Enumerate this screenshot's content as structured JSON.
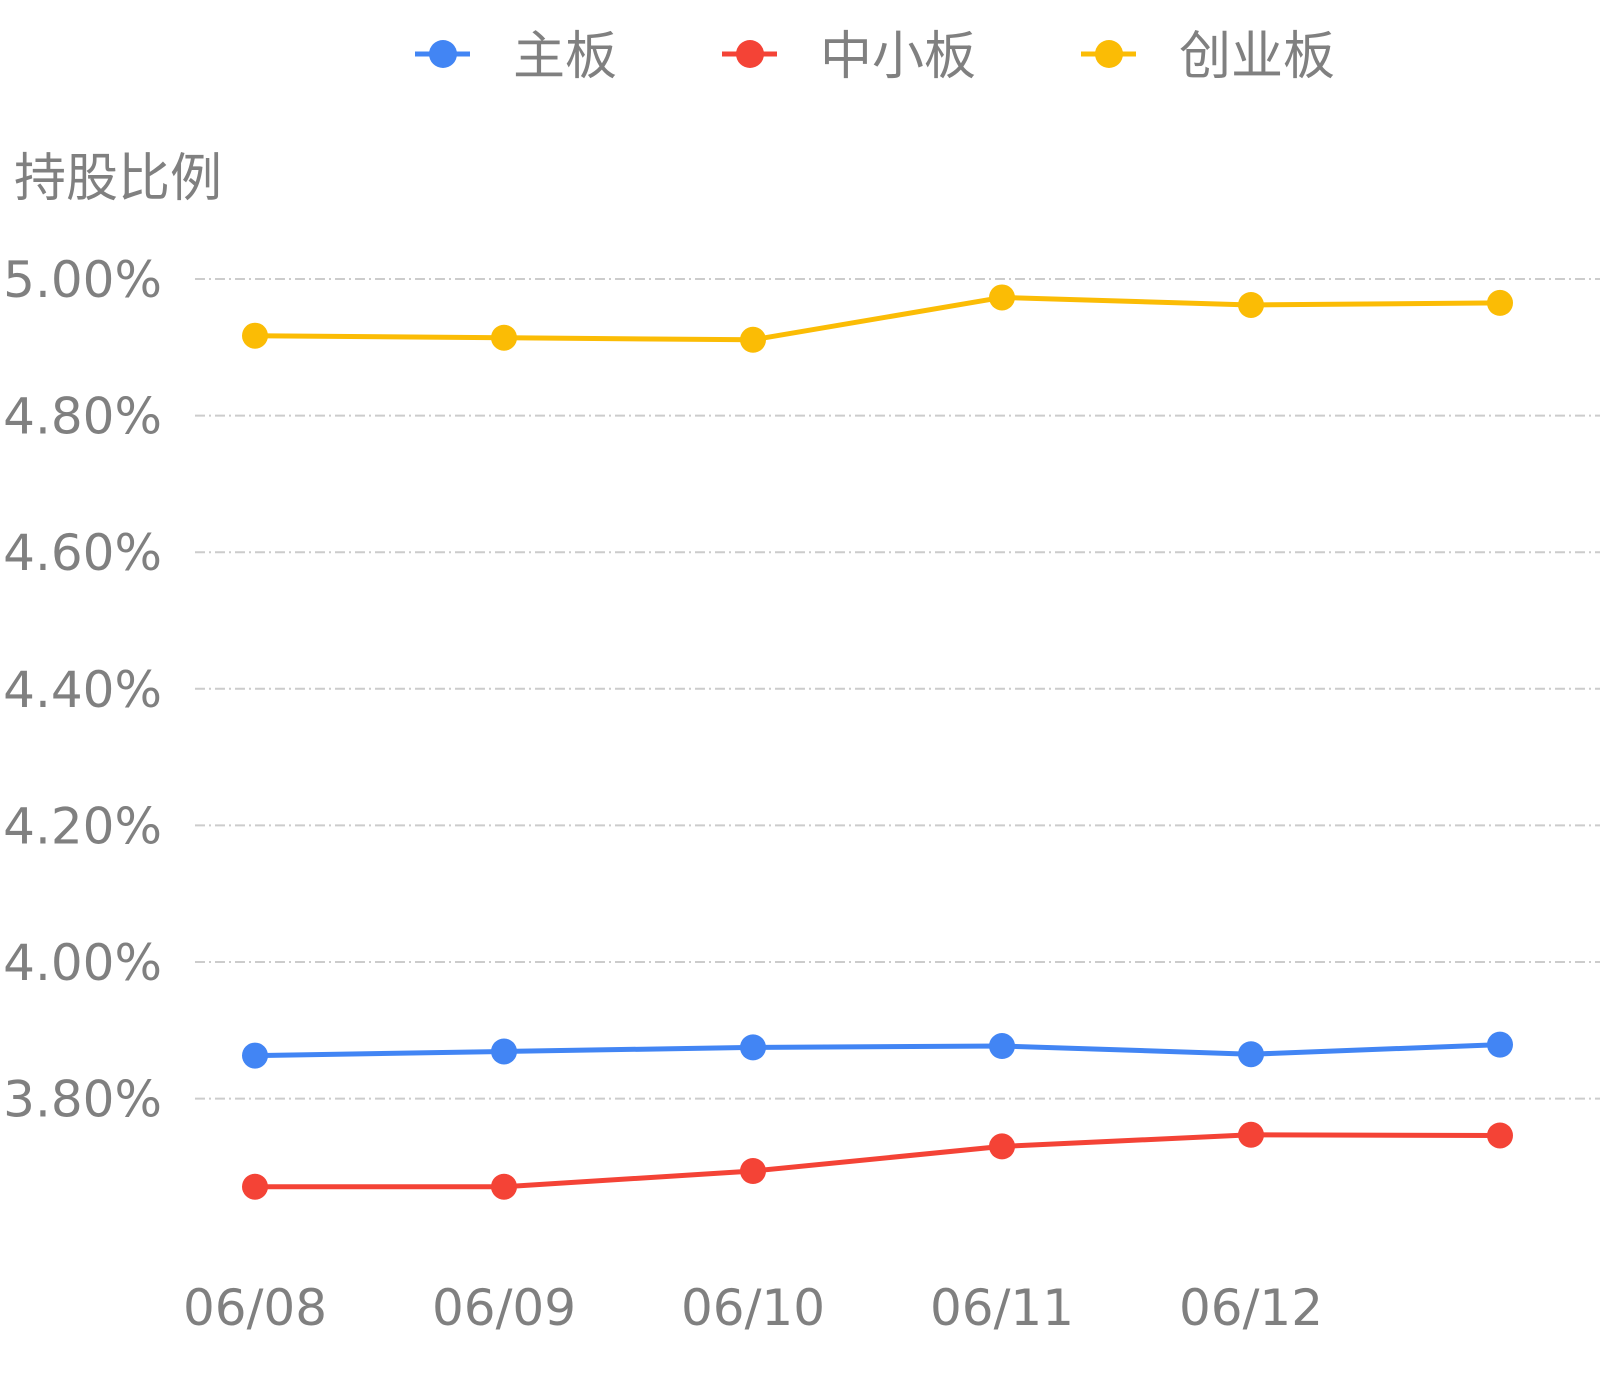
{
  "chart_data": {
    "type": "line",
    "ylabel": "持股比例",
    "x": [
      "06/08",
      "06/09",
      "06/10",
      "06/11",
      "06/12",
      ""
    ],
    "x_tick_labels": [
      "06/08",
      "06/09",
      "06/10",
      "06/11",
      "06/12"
    ],
    "y_tick_labels": [
      "5.00%",
      "4.80%",
      "4.60%",
      "4.40%",
      "4.20%",
      "4.00%",
      "3.80%"
    ],
    "y_ticks": [
      5.0,
      4.8,
      4.6,
      4.4,
      4.2,
      4.0,
      3.8
    ],
    "ylim": [
      3.56,
      5.0
    ],
    "grid": true,
    "legend_position": "top",
    "series": [
      {
        "name": "主板",
        "color": "#4285f4",
        "values": [
          3.863,
          3.869,
          3.875,
          3.877,
          3.865,
          3.879
        ]
      },
      {
        "name": "中小板",
        "color": "#f44336",
        "values": [
          3.671,
          3.671,
          3.694,
          3.73,
          3.747,
          3.746
        ]
      },
      {
        "name": "创业板",
        "color": "#fbbc05",
        "values": [
          4.917,
          4.914,
          4.911,
          4.973,
          4.962,
          4.965
        ]
      }
    ]
  }
}
